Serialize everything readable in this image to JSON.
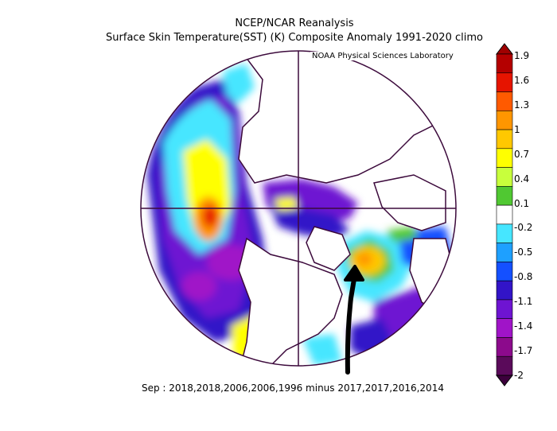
{
  "title": "NCEP/NCAR Reanalysis",
  "subtitle": "Surface Skin Temperature(SST) (K) Composite Anomaly 1991-2020 climo",
  "credit": "NOAA Physical Sciences Laboratory",
  "caption": "Sep : 2018,2018,2006,2006,1996 minus 2017,2017,2016,2014",
  "colorbar": {
    "labels": [
      "1.9",
      "1.6",
      "1.3",
      "1",
      "0.7",
      "0.4",
      "0.1",
      "-0.2",
      "-0.5",
      "-0.8",
      "-1.1",
      "-1.4",
      "-1.7",
      "-2"
    ],
    "colors": [
      "#b40000",
      "#e61400",
      "#ff5a00",
      "#ff9600",
      "#ffc800",
      "#ffff00",
      "#c8ff3c",
      "#50c832",
      "#ffffff",
      "#46e6ff",
      "#1ea0ff",
      "#1450ff",
      "#3214c8",
      "#6e14d2",
      "#a014c8",
      "#8c0a8c",
      "#5a0a5a"
    ]
  },
  "colors": {
    "coastline": "#3c0a3c",
    "grid": "#3c0a3c",
    "arrow": "#000000"
  }
}
